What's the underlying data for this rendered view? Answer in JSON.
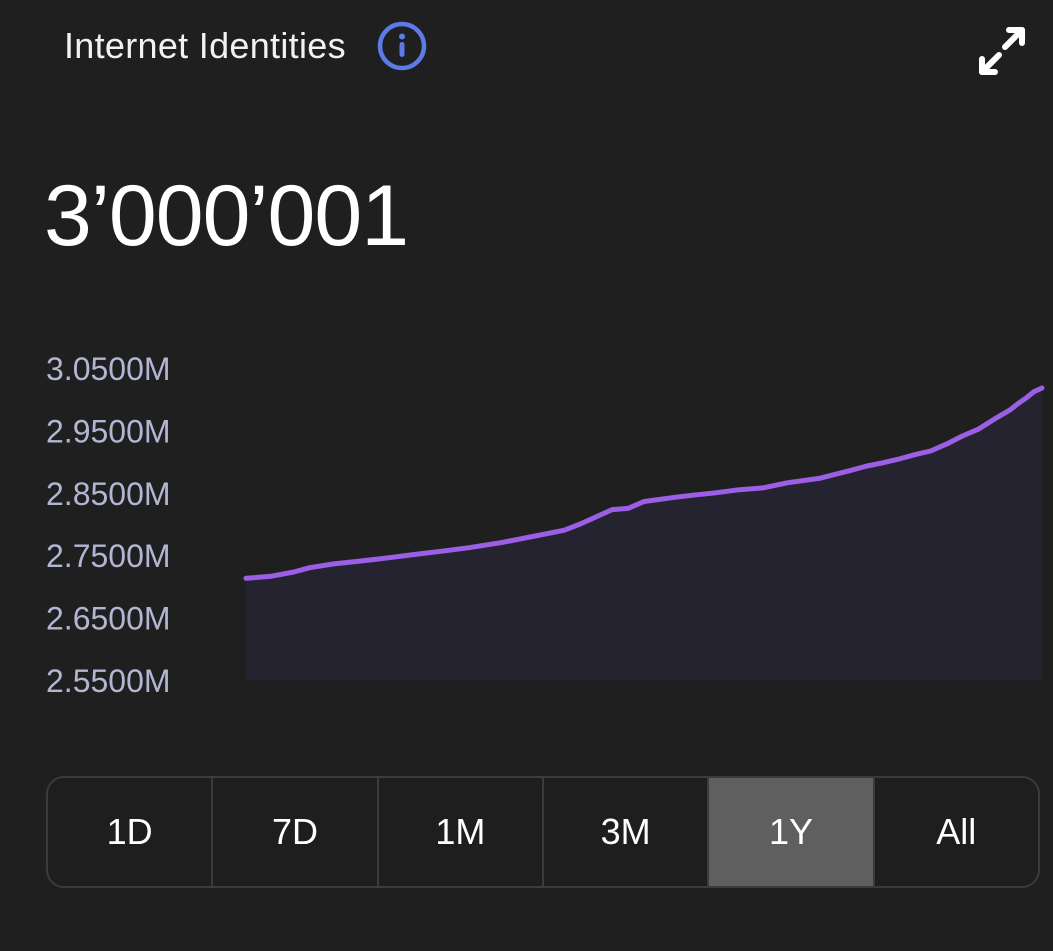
{
  "header": {
    "title": "Internet Identities",
    "info_icon": "info-circle-icon",
    "expand_icon": "expand-arrows-icon"
  },
  "value": "3’000’001",
  "timeframes": [
    {
      "label": "1D",
      "active": false
    },
    {
      "label": "7D",
      "active": false
    },
    {
      "label": "1M",
      "active": false
    },
    {
      "label": "3M",
      "active": false
    },
    {
      "label": "1Y",
      "active": true
    },
    {
      "label": "All",
      "active": false
    }
  ],
  "colors": {
    "background": "#1f1f20",
    "line": "#9b5fe6",
    "area": "#262331",
    "info_icon": "#5b7be6",
    "tick_label": "#b3b6d2",
    "active_button": "#5f5f60"
  },
  "chart_data": {
    "type": "area",
    "ylim": [
      2550000,
      3050000
    ],
    "y_ticks": [
      "3.0500M",
      "2.9500M",
      "2.8500M",
      "2.7500M",
      "2.6500M",
      "2.5500M"
    ],
    "y_tick_values": [
      3050000,
      2950000,
      2850000,
      2750000,
      2650000,
      2550000
    ],
    "x_range": [
      0,
      100
    ],
    "series": [
      {
        "x": [
          0,
          3,
          6,
          8,
          11,
          14,
          18,
          21,
          25,
          28,
          32,
          36,
          40,
          42,
          46,
          48,
          50,
          54,
          56,
          59,
          62,
          65,
          68,
          72,
          76,
          78,
          80,
          82,
          84,
          86,
          88,
          90,
          92,
          94,
          96,
          97,
          98,
          99,
          100
        ],
        "y": [
          2713000,
          2716000,
          2723000,
          2730000,
          2736000,
          2740000,
          2746000,
          2751000,
          2757000,
          2762000,
          2770000,
          2780000,
          2790000,
          2800000,
          2823000,
          2825000,
          2836000,
          2843000,
          2846000,
          2850000,
          2855000,
          2858000,
          2866000,
          2873000,
          2886000,
          2893000,
          2898000,
          2904000,
          2911000,
          2917000,
          2928000,
          2941000,
          2952000,
          2968000,
          2983000,
          2993000,
          3002000,
          3012000,
          3018000
        ]
      }
    ]
  }
}
